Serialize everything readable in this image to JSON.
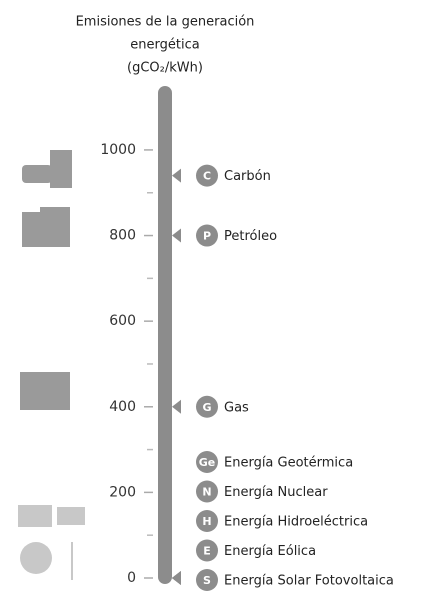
{
  "chart_data": {
    "type": "scale",
    "title": [
      "Emisiones de la generación",
      "energética",
      "(gCO₂/kWh)"
    ],
    "ylim": [
      0,
      1140
    ],
    "yticks": [
      0,
      200,
      400,
      600,
      800,
      1000
    ],
    "minor_yticks": [
      100,
      300,
      500,
      700,
      900
    ],
    "color": "#8c8c8c",
    "items": [
      {
        "badge": "C",
        "name": "Carbón",
        "value": 940
      },
      {
        "badge": "P",
        "name": "Petróleo",
        "value": 800
      },
      {
        "badge": "G",
        "name": "Gas",
        "value": 400
      },
      {
        "badge": "Ge",
        "name": "Energía Geotérmica",
        "value": 0
      },
      {
        "badge": "N",
        "name": "Energía Nuclear",
        "value": 0
      },
      {
        "badge": "H",
        "name": "Energía Hidroeléctrica",
        "value": 0
      },
      {
        "badge": "E",
        "name": "Energía Eólica",
        "value": 0
      },
      {
        "badge": "S",
        "name": "Energía Solar Fotovoltaica",
        "value": 0
      }
    ]
  }
}
